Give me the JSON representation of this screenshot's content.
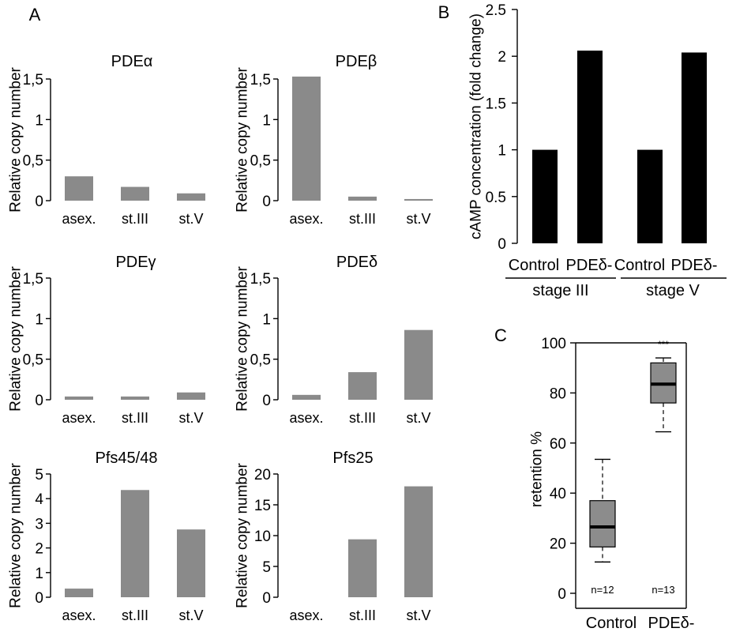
{
  "panel_labels": {
    "a": "A",
    "b": "B",
    "c": "C"
  },
  "colors": {
    "bar_a": "#8a8a8a",
    "bar_b": "#000000",
    "box_fill": "#8c8c8c"
  },
  "chart_data": [
    {
      "type": "bar",
      "panel": "A",
      "title": "PDEα",
      "ylabel": "Relative copy number",
      "categories": [
        "asex.",
        "st.III",
        "st.V"
      ],
      "values": [
        0.3,
        0.17,
        0.09
      ],
      "ylim": [
        0,
        1.5
      ],
      "yticks": [
        0,
        0.5,
        1,
        1.5
      ],
      "ytick_labels": [
        "0",
        "0,5",
        "1",
        "1,5"
      ]
    },
    {
      "type": "bar",
      "panel": "A",
      "title": "PDEβ",
      "ylabel": "Relative copy number",
      "categories": [
        "asex.",
        "st.III",
        "st.V"
      ],
      "values": [
        1.53,
        0.05,
        0.02
      ],
      "ylim": [
        0,
        1.5
      ],
      "yticks": [
        0,
        0.5,
        1,
        1.5
      ],
      "ytick_labels": [
        "0",
        "0,5",
        "1",
        "1,5"
      ]
    },
    {
      "type": "bar",
      "panel": "A",
      "title": "PDEγ",
      "ylabel": "Relative copy number",
      "categories": [
        "asex.",
        "st.III",
        "st.V"
      ],
      "values": [
        0.04,
        0.04,
        0.09
      ],
      "ylim": [
        0,
        1.5
      ],
      "yticks": [
        0,
        0.5,
        1,
        1.5
      ],
      "ytick_labels": [
        "0",
        "0,5",
        "1",
        "1,5"
      ]
    },
    {
      "type": "bar",
      "panel": "A",
      "title": "PDEδ",
      "ylabel": "Relative copy number",
      "categories": [
        "asex.",
        "st.III",
        "st.V"
      ],
      "values": [
        0.06,
        0.34,
        0.86
      ],
      "ylim": [
        0,
        1.5
      ],
      "yticks": [
        0,
        0.5,
        1,
        1.5
      ],
      "ytick_labels": [
        "0",
        "0,5",
        "1",
        "1,5"
      ]
    },
    {
      "type": "bar",
      "panel": "A",
      "title": "Pfs45/48",
      "ylabel": "Relative copy number",
      "categories": [
        "asex.",
        "st.III",
        "st.V"
      ],
      "values": [
        0.35,
        4.35,
        2.75
      ],
      "ylim": [
        0,
        5
      ],
      "yticks": [
        0,
        1,
        2,
        3,
        4,
        5
      ],
      "ytick_labels": [
        "0",
        "1",
        "2",
        "3",
        "4",
        "5"
      ]
    },
    {
      "type": "bar",
      "panel": "A",
      "title": "Pfs25",
      "ylabel": "Relative copy number",
      "categories": [
        "asex.",
        "st.III",
        "st.V"
      ],
      "values": [
        0,
        9.4,
        18.0
      ],
      "ylim": [
        0,
        20
      ],
      "yticks": [
        0,
        5,
        10,
        15,
        20
      ],
      "ytick_labels": [
        "0",
        "5",
        "10",
        "15",
        "20"
      ]
    },
    {
      "type": "bar",
      "panel": "B",
      "title": "",
      "ylabel": "cAMP concentration (fold change)",
      "categories": [
        "Control",
        "PDEδ-",
        "Control",
        "PDEδ-"
      ],
      "groups": [
        "stage III",
        "stage V"
      ],
      "values": [
        1.0,
        2.06,
        1.0,
        2.04
      ],
      "ylim": [
        0,
        2.5
      ],
      "yticks": [
        0,
        0.5,
        1,
        1.5,
        2,
        2.5
      ],
      "ytick_labels": [
        "0",
        "0.5",
        "1",
        "1.5",
        "2",
        "2.5"
      ]
    },
    {
      "type": "box",
      "panel": "C",
      "title": "",
      "ylabel": "retention %",
      "categories": [
        "Control",
        "PDEδ-"
      ],
      "boxes": [
        {
          "whisker_low": 12.5,
          "q1": 18.5,
          "median": 26.5,
          "q3": 37,
          "whisker_high": 53.5,
          "n_label": "n=12"
        },
        {
          "whisker_low": 64.5,
          "q1": 76,
          "median": 83.5,
          "q3": 92,
          "whisker_high": 94,
          "n_label": "n=13",
          "significance": "***"
        }
      ],
      "ylim": [
        0,
        100
      ],
      "yticks": [
        0,
        20,
        40,
        60,
        80,
        100
      ],
      "ytick_labels": [
        "0",
        "20",
        "40",
        "60",
        "80",
        "100"
      ]
    }
  ]
}
